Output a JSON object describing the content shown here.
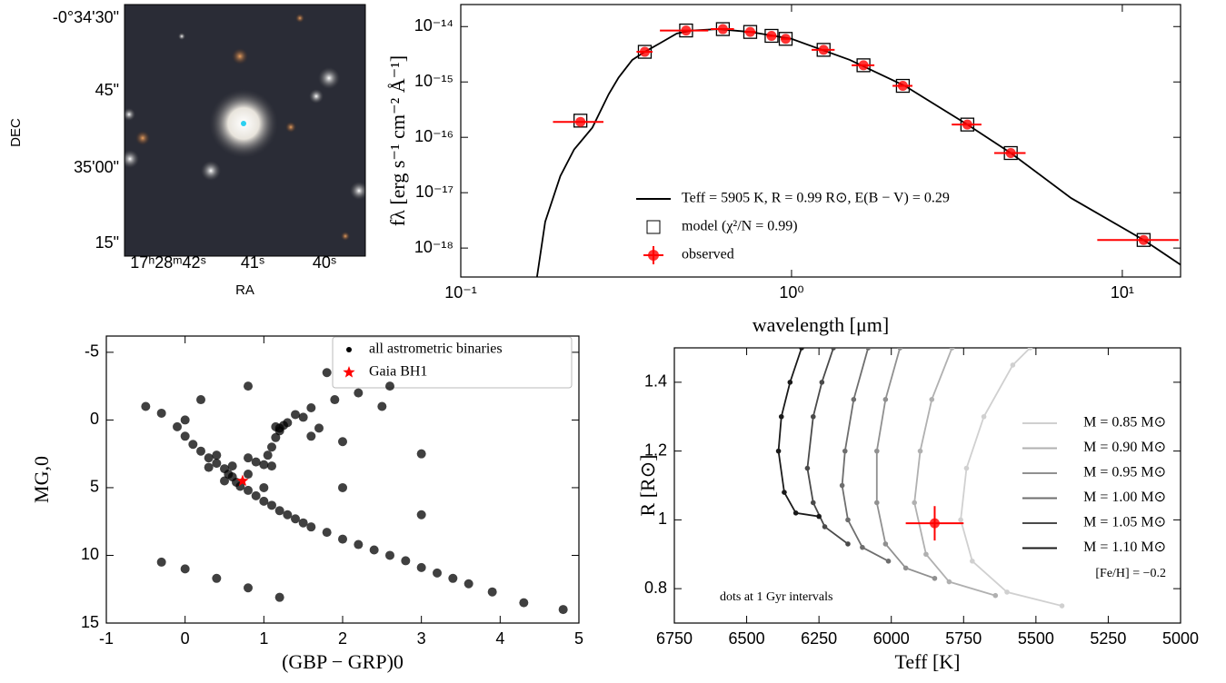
{
  "chart_data": [
    {
      "type": "image",
      "xlabel": "RA",
      "ylabel": "DEC",
      "xticklabels": [
        "17ʰ28ᵐ42ˢ",
        "41ˢ",
        "40ˢ"
      ],
      "yticklabels": [
        "-0°34'30\"",
        "45\"",
        "35'00\"",
        "15\""
      ]
    },
    {
      "type": "line",
      "xlabel": "wavelength [μm]",
      "ylabel": "fλ [erg s⁻¹ cm⁻² Å⁻¹]",
      "xlog": true,
      "ylog": true,
      "xlim": [
        0.1,
        15
      ],
      "ylim": [
        3e-19,
        2.5e-14
      ],
      "xticks": [
        {
          "value": 0.1,
          "label": "10⁻¹"
        },
        {
          "value": 1,
          "label": "10⁰"
        },
        {
          "value": 10,
          "label": "10¹"
        }
      ],
      "yticks": [
        {
          "value": 1e-18,
          "label": "10⁻¹⁸"
        },
        {
          "value": 1e-17,
          "label": "10⁻¹⁷"
        },
        {
          "value": 1e-16,
          "label": "10⁻¹⁶"
        },
        {
          "value": 1e-15,
          "label": "10⁻¹⁵"
        },
        {
          "value": 1e-14,
          "label": "10⁻¹⁴"
        }
      ],
      "legend": "lower center",
      "series": [
        {
          "name": "Teff = 5905 K,  R = 0.99 R⊙,  E(B − V) = 0.29",
          "color": "#000000",
          "marker": "line",
          "x": [
            0.17,
            0.18,
            0.2,
            0.22,
            0.25,
            0.28,
            0.3,
            0.33,
            0.36,
            0.4,
            0.45,
            0.5,
            0.6,
            0.75,
            1,
            1.5,
            2.2,
            3.4,
            4.6,
            7,
            11.6,
            15
          ],
          "values": [
            3e-19,
            3e-18,
            2e-17,
            6e-17,
            1.5e-16,
            6e-16,
            1.2e-15,
            2.5e-15,
            3.5e-15,
            5e-15,
            7.5e-15,
            8.5e-15,
            9e-15,
            8e-15,
            6e-15,
            2.5e-15,
            8.5e-16,
            1.7e-16,
            5.2e-17,
            8e-18,
            1.4e-18,
            5e-19
          ]
        },
        {
          "name": "model (χ²/N = 0.99)",
          "color": "#000000",
          "marker": "square",
          "x": [
            0.23,
            0.36,
            0.48,
            0.62,
            0.75,
            0.87,
            0.96,
            1.25,
            1.65,
            2.17,
            3.4,
            4.6,
            11.6
          ],
          "values": [
            2e-16,
            3.5e-15,
            8.5e-15,
            9e-15,
            8e-15,
            6.8e-15,
            6e-15,
            3.8e-15,
            2e-15,
            8.5e-16,
            1.7e-16,
            5.2e-17,
            1.4e-18
          ]
        },
        {
          "name": "observed",
          "color": "#ff0000",
          "marker": "errpoint",
          "x": [
            0.23,
            0.36,
            0.48,
            0.62,
            0.75,
            0.87,
            0.96,
            1.25,
            1.65,
            2.17,
            3.4,
            4.6,
            11.6
          ],
          "values": [
            1.9e-16,
            3.5e-15,
            8.5e-15,
            9e-15,
            8e-15,
            6.8e-15,
            6e-15,
            3.8e-15,
            2e-15,
            8.5e-16,
            1.7e-16,
            5.2e-17,
            1.4e-18
          ],
          "xerr": [
            0.04,
            0.02,
            0.08,
            0.05,
            0.03,
            0.03,
            0.03,
            0.1,
            0.13,
            0.15,
            0.35,
            0.5,
            3.2
          ]
        }
      ]
    },
    {
      "type": "scatter",
      "xlabel": "(GBP − GRP)0",
      "ylabel": "MG,0",
      "xlim": [
        -1,
        5
      ],
      "ylim": [
        15,
        -6.2
      ],
      "xticks": [
        -1,
        0,
        1,
        2,
        3,
        4,
        5
      ],
      "yticks": [
        -5,
        0,
        5,
        10,
        15
      ],
      "legend": "upper right",
      "series": [
        {
          "name": "all astrometric binaries",
          "color": "#000000",
          "marker": "dot",
          "x": [
            -0.3,
            -0.1,
            0,
            0.1,
            0.2,
            0.3,
            0.4,
            0.5,
            0.55,
            0.6,
            0.65,
            0.7,
            0.8,
            0.9,
            1,
            1.1,
            1.2,
            1.3,
            1.4,
            1.5,
            1.6,
            1.8,
            2,
            2.2,
            2.4,
            2.6,
            2.8,
            3,
            3.2,
            3.4,
            3.6,
            3.9,
            4.3,
            0.4,
            0.6,
            0.3,
            0.8,
            1,
            0.5,
            0.8,
            0.9,
            1,
            1.1,
            1.05,
            1.1,
            1.15,
            1.2,
            1.3,
            1.4,
            1.6,
            1.9,
            2.2,
            2.6,
            1.7,
            1.5,
            1.15,
            1.2,
            1.25,
            1.6,
            2,
            0.2,
            0.8,
            1.8,
            2.5,
            3,
            4.8,
            -0.5,
            0,
            -0.3,
            0,
            0.4,
            0.8,
            1.2,
            3,
            2
          ],
          "values": [
            -0.5,
            0.5,
            1.2,
            1.8,
            2.3,
            2.8,
            3.2,
            3.6,
            4,
            4.2,
            4.6,
            4.9,
            5.2,
            5.6,
            6,
            6.3,
            6.7,
            7,
            7.3,
            7.6,
            7.9,
            8.3,
            8.8,
            9.2,
            9.6,
            10,
            10.4,
            10.9,
            11.3,
            11.7,
            12.1,
            12.7,
            13.5,
            2.6,
            3.4,
            3.5,
            4,
            5,
            4.5,
            2.8,
            3.1,
            3.3,
            3.4,
            2.6,
            2,
            1.3,
            0.8,
            0.2,
            -0.4,
            -0.9,
            -1.5,
            -2,
            -2.5,
            0.6,
            -0.2,
            0.5,
            0.6,
            0.4,
            1.2,
            1.6,
            -1.5,
            -2.5,
            -3.5,
            -1,
            2.5,
            14,
            -1,
            0,
            10.5,
            11,
            11.7,
            12.4,
            13.1,
            7,
            5
          ]
        },
        {
          "name": "Gaia BH1",
          "color": "#ff0000",
          "marker": "star",
          "x": [
            0.73
          ],
          "values": [
            4.5
          ]
        }
      ]
    },
    {
      "type": "line",
      "xlabel": "Teff [K]",
      "ylabel": "R [R⊙]",
      "xlim": [
        6750,
        5000
      ],
      "ylim": [
        0.7,
        1.5
      ],
      "xticks": [
        6750,
        6500,
        6250,
        6000,
        5750,
        5500,
        5250,
        5000
      ],
      "yticks": [
        0.8,
        1.0,
        1.2,
        1.4
      ],
      "legend": "center right",
      "annotations": [
        "[Fe/H] = −0.2",
        "dots at 1 Gyr intervals"
      ],
      "series": [
        {
          "name": "M = 0.85 M⊙",
          "color": "#d0d0d0",
          "marker": "line-dots",
          "x": [
            5410,
            5600,
            5720,
            5760,
            5740,
            5680,
            5580,
            5520
          ],
          "values": [
            0.75,
            0.79,
            0.88,
            1.0,
            1.15,
            1.3,
            1.45,
            1.5
          ]
        },
        {
          "name": "M = 0.90 M⊙",
          "color": "#b0b0b0",
          "marker": "line-dots",
          "x": [
            5640,
            5800,
            5880,
            5920,
            5900,
            5860,
            5790
          ],
          "values": [
            0.78,
            0.82,
            0.9,
            1.05,
            1.2,
            1.35,
            1.5
          ]
        },
        {
          "name": "M = 0.95 M⊙",
          "color": "#909090",
          "marker": "line-dots",
          "x": [
            5850,
            5950,
            6020,
            6050,
            6050,
            6020,
            5970
          ],
          "values": [
            0.83,
            0.86,
            0.93,
            1.05,
            1.2,
            1.35,
            1.5
          ]
        },
        {
          "name": "M = 1.00 M⊙",
          "color": "#6e6e6e",
          "marker": "line-dots",
          "x": [
            6010,
            6100,
            6150,
            6170,
            6160,
            6130,
            6080
          ],
          "values": [
            0.88,
            0.92,
            1.0,
            1.1,
            1.2,
            1.35,
            1.5
          ]
        },
        {
          "name": "M = 1.05 M⊙",
          "color": "#4a4a4a",
          "marker": "line-dots",
          "x": [
            6150,
            6230,
            6270,
            6290,
            6270,
            6240,
            6200
          ],
          "values": [
            0.93,
            0.98,
            1.05,
            1.15,
            1.3,
            1.4,
            1.5
          ]
        },
        {
          "name": "M = 1.10 M⊙",
          "color": "#1a1a1a",
          "marker": "line-dots",
          "x": [
            6250,
            6330,
            6370,
            6390,
            6380,
            6350,
            6310
          ],
          "values": [
            1.01,
            1.02,
            1.08,
            1.2,
            1.3,
            1.4,
            1.5
          ]
        },
        {
          "color": "#ff0000",
          "marker": "errpoint",
          "x": [
            5850
          ],
          "values": [
            0.99
          ],
          "xerr": [
            100
          ],
          "yerr": [
            0.05
          ]
        }
      ]
    }
  ]
}
